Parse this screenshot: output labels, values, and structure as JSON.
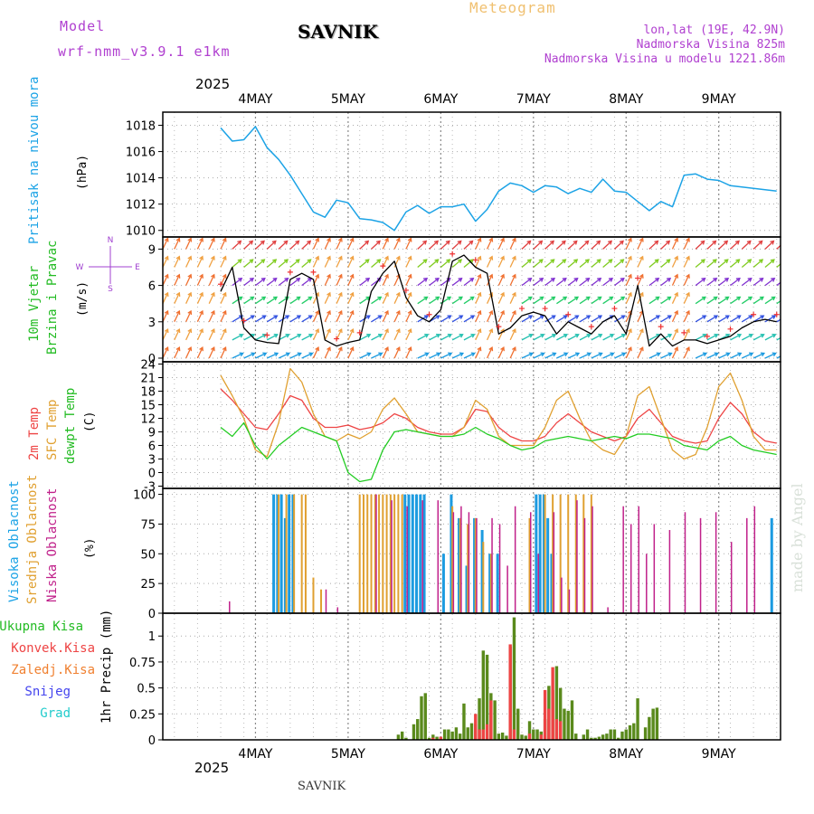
{
  "header": {
    "model_label": "Model",
    "model_name": "wrf-nmm_v3.9.1 e1km",
    "station": "SAVNIK",
    "meteogram": "Meteogram",
    "lonlat": "lon,lat (19E, 42.9N)",
    "elevation": "Nadmorska Visina 825m",
    "model_elevation": "Nadmorska Visina u modelu 1221.86m",
    "year_top": "2025",
    "year_bottom": "2025",
    "footer_station": "SAVNIK",
    "watermark": "made by Angel"
  },
  "days": [
    "4MAY",
    "5MAY",
    "6MAY",
    "7MAY",
    "8MAY",
    "9MAY"
  ],
  "colors": {
    "pressure": "#1ca3e6",
    "temp2m": "#ee4444",
    "sfc": "#e0a030",
    "dewpt": "#22cc22",
    "high_cloud": "#1c9be0",
    "mid_cloud": "#e0a030",
    "low_cloud": "#c0208a",
    "total_precip": "#5a8a1c",
    "conv_precip": "#ee4444"
  },
  "panel_labels": {
    "pressure": [
      "Pritisak na nivou mora",
      "(hPa)"
    ],
    "wind": [
      "10m Vjetar",
      "Brzina i Pravac",
      "(m/s)"
    ],
    "temp": [
      "2m Temp",
      "SFC Temp",
      "dewpt Temp",
      "(C)"
    ],
    "cloud": [
      "Visoka Oblacnost",
      "Srednja Oblacnost",
      "Niska Oblacnost",
      "(%)"
    ],
    "precip": [
      "1hr Precip (mm)"
    ],
    "compass": [
      "N",
      "S",
      "W",
      "E"
    ]
  },
  "precip_legend": [
    {
      "label": "Ukupna Kisa",
      "color": "#22bb22"
    },
    {
      "label": "Konvek.Kisa",
      "color": "#ee4444"
    },
    {
      "label": "Zaledj.Kisa",
      "color": "#f08030"
    },
    {
      "label": "Snijeg",
      "color": "#4444ee"
    },
    {
      "label": "Grad",
      "color": "#22cccc"
    }
  ],
  "chart_data": [
    {
      "type": "line",
      "name": "pressure",
      "ylabel": "(hPa)",
      "ylim": [
        1009.5,
        1019
      ],
      "yticks": [
        "1010",
        "1012",
        "1014",
        "1016",
        "1018"
      ],
      "x_hours": [
        0,
        3,
        6,
        9,
        12,
        15,
        18,
        21,
        24,
        27,
        30,
        33,
        36,
        39,
        42,
        45,
        48,
        51,
        54,
        57,
        60,
        63,
        66,
        69,
        72,
        75,
        78,
        81,
        84,
        87,
        90,
        93,
        96,
        99,
        102,
        105,
        108,
        111,
        114,
        117,
        120,
        123,
        126,
        129,
        132,
        135,
        138,
        141,
        144
      ],
      "values": [
        1017.8,
        1016.8,
        1016.9,
        1017.9,
        1016.3,
        1015.4,
        1014.2,
        1012.8,
        1011.4,
        1011.0,
        1012.3,
        1012.1,
        1010.9,
        1010.8,
        1010.6,
        1010.0,
        1011.4,
        1011.9,
        1011.3,
        1011.8,
        1011.8,
        1012.0,
        1010.7,
        1011.6,
        1013.0,
        1013.6,
        1013.4,
        1012.9,
        1013.4,
        1013.3,
        1012.8,
        1013.2,
        1012.9,
        1013.9,
        1013.0,
        1012.9,
        1012.2,
        1011.5,
        1012.2,
        1011.8,
        1014.2,
        1014.3,
        1013.9,
        1013.8,
        1013.4,
        1013.3,
        1013.2,
        1013.1,
        1013.0
      ]
    },
    {
      "type": "line",
      "name": "wind",
      "ylabel": "(m/s)",
      "ylim": [
        -0.3,
        10
      ],
      "yticks": [
        "0",
        "3",
        "6",
        "9"
      ],
      "x_hours": [
        0,
        3,
        6,
        9,
        12,
        15,
        18,
        21,
        24,
        27,
        30,
        33,
        36,
        39,
        42,
        45,
        48,
        51,
        54,
        57,
        60,
        63,
        66,
        69,
        72,
        75,
        78,
        81,
        84,
        87,
        90,
        93,
        96,
        99,
        102,
        105,
        108,
        111,
        114,
        117,
        120,
        123,
        126,
        129,
        132,
        135,
        138,
        141,
        144
      ],
      "values": [
        5.5,
        7.5,
        2.5,
        1.5,
        1.3,
        1.2,
        6.5,
        7.0,
        6.5,
        1.5,
        1.0,
        1.3,
        1.5,
        5.5,
        7.0,
        8.0,
        5.0,
        3.5,
        3.0,
        4.0,
        8.0,
        8.5,
        7.5,
        7.0,
        2.0,
        2.5,
        3.5,
        3.8,
        3.5,
        2.0,
        3.0,
        2.5,
        2.0,
        3.0,
        3.5,
        2.0,
        6.0,
        1.0,
        2.0,
        1.0,
        1.5,
        1.5,
        1.2,
        1.5,
        1.8,
        2.5,
        3.0,
        3.2,
        3.0
      ]
    },
    {
      "type": "line",
      "name": "temperature",
      "ylabel": "(C)",
      "ylim": [
        -3.5,
        24.5
      ],
      "yticks": [
        "-3",
        "0",
        "3",
        "6",
        "9",
        "12",
        "15",
        "18",
        "21",
        "24"
      ],
      "x_hours": [
        0,
        3,
        6,
        9,
        12,
        15,
        18,
        21,
        24,
        27,
        30,
        33,
        36,
        39,
        42,
        45,
        48,
        51,
        54,
        57,
        60,
        63,
        66,
        69,
        72,
        75,
        78,
        81,
        84,
        87,
        90,
        93,
        96,
        99,
        102,
        105,
        108,
        111,
        114,
        117,
        120,
        123,
        126,
        129,
        132,
        135,
        138,
        141,
        144
      ],
      "series": [
        {
          "name": "2m Temp",
          "values": [
            18.5,
            16,
            13,
            10,
            9.5,
            13,
            17,
            16,
            12,
            10,
            10,
            10.5,
            9.5,
            10,
            11,
            13,
            12,
            10,
            9,
            8.5,
            8.5,
            10,
            14,
            13.5,
            10,
            8,
            7,
            7,
            8,
            11,
            13,
            11,
            9,
            8,
            7,
            8,
            12,
            14,
            11,
            8,
            7,
            6.5,
            7,
            12,
            15.5,
            13,
            9,
            7,
            6.5
          ]
        },
        {
          "name": "SFC Temp",
          "values": [
            21.5,
            17,
            12,
            5,
            3.5,
            11,
            23,
            20,
            13,
            8,
            7,
            8.5,
            7.5,
            9,
            14,
            16.5,
            13,
            9,
            8.5,
            8,
            8,
            10,
            16,
            14,
            8,
            6,
            6,
            6,
            10,
            16,
            18,
            12,
            7,
            5,
            4,
            8,
            17,
            19,
            12,
            5,
            3,
            4,
            10,
            19,
            22,
            16,
            8,
            5,
            5
          ]
        },
        {
          "name": "dewpt Temp",
          "values": [
            10,
            8,
            11,
            6,
            3,
            6,
            8,
            10,
            9,
            8,
            7,
            0,
            -2,
            -1.5,
            5,
            9,
            9.5,
            9,
            8.5,
            8,
            8,
            8.5,
            10,
            8.5,
            7.5,
            6,
            5,
            5.5,
            7,
            7.5,
            8,
            7.5,
            7,
            7.5,
            8,
            7.5,
            8.5,
            8.5,
            8,
            7.5,
            6,
            5.5,
            5,
            7,
            8,
            6,
            5,
            4.5,
            4
          ]
        }
      ]
    },
    {
      "type": "bar",
      "name": "cloud_cover",
      "ylabel": "(%)",
      "ylim": [
        0,
        105
      ],
      "yticks": [
        "0",
        "25",
        "50",
        "75",
        "100"
      ],
      "series": [
        {
          "name": "Visoka Oblacnost",
          "x_hours": [
            14,
            15,
            16,
            17,
            18,
            19,
            48,
            49,
            50,
            51,
            52,
            53,
            58,
            60,
            62,
            64,
            66,
            68,
            70,
            72,
            82,
            83,
            84,
            85,
            86,
            143
          ],
          "values": [
            100,
            100,
            100,
            80,
            100,
            100,
            100,
            100,
            100,
            100,
            100,
            100,
            50,
            100,
            80,
            40,
            80,
            70,
            50,
            50,
            100,
            100,
            100,
            80,
            50,
            80
          ]
        },
        {
          "name": "Srednja Oblacnost",
          "x_hours": [
            15,
            17,
            19,
            21,
            22,
            24,
            26,
            36,
            37,
            38,
            39,
            40,
            41,
            42,
            43,
            44,
            45,
            46,
            47,
            60,
            62,
            64,
            66,
            68,
            70,
            80,
            84,
            86,
            88,
            90,
            92,
            94,
            96
          ],
          "values": [
            100,
            100,
            100,
            100,
            100,
            30,
            20,
            100,
            100,
            100,
            100,
            100,
            100,
            100,
            100,
            100,
            100,
            100,
            100,
            90,
            80,
            75,
            80,
            60,
            50,
            80,
            100,
            100,
            100,
            100,
            100,
            100,
            100
          ]
        },
        {
          "name": "Niska Oblacnost",
          "x_hours": [
            2,
            27,
            30,
            40,
            44,
            48,
            52,
            56,
            60,
            62,
            64,
            66,
            70,
            72,
            74,
            76,
            80,
            82,
            86,
            88,
            90,
            92,
            94,
            96,
            100,
            104,
            106,
            108,
            110,
            112,
            116,
            120,
            124,
            128,
            132,
            136,
            138
          ],
          "values": [
            10,
            20,
            5,
            100,
            95,
            90,
            95,
            95,
            85,
            90,
            85,
            80,
            80,
            75,
            40,
            90,
            85,
            50,
            85,
            30,
            20,
            95,
            80,
            90,
            5,
            90,
            75,
            90,
            50,
            75,
            70,
            85,
            80,
            85,
            60,
            80,
            90
          ]
        }
      ]
    },
    {
      "type": "bar",
      "name": "precipitation",
      "ylabel": "1hr Precip (mm)",
      "ylim": [
        0,
        1.22
      ],
      "yticks": [
        "0",
        "0.25",
        "0.5",
        "0.75",
        "1"
      ],
      "series": [
        {
          "name": "Ukupna Kisa",
          "x_hours": [
            46,
            47,
            48,
            50,
            51,
            52,
            53,
            54,
            55,
            56,
            57,
            58,
            59,
            60,
            61,
            62,
            63,
            64,
            65,
            66,
            67,
            68,
            69,
            70,
            71,
            72,
            73,
            74,
            75,
            76,
            77,
            78,
            79,
            80,
            81,
            82,
            83,
            84,
            85,
            86,
            87,
            88,
            89,
            90,
            91,
            92,
            94,
            95,
            96,
            97,
            98,
            99,
            100,
            101,
            102,
            103,
            104,
            105,
            106,
            107,
            108,
            110,
            111,
            112,
            113
          ],
          "values": [
            0.05,
            0.08,
            0.02,
            0.15,
            0.2,
            0.42,
            0.45,
            0.02,
            0.05,
            0.03,
            0.02,
            0.1,
            0.1,
            0.08,
            0.12,
            0.06,
            0.35,
            0.12,
            0.16,
            0.15,
            0.4,
            0.86,
            0.82,
            0.45,
            0.38,
            0.06,
            0.07,
            0.04,
            0.9,
            1.18,
            0.3,
            0.05,
            0.04,
            0.18,
            0.1,
            0.1,
            0.08,
            0.2,
            0.52,
            0.48,
            0.71,
            0.5,
            0.3,
            0.28,
            0.38,
            0.06,
            0.05,
            0.1,
            0.02,
            0.02,
            0.03,
            0.05,
            0.06,
            0.1,
            0.1,
            0.02,
            0.08,
            0.1,
            0.14,
            0.16,
            0.4,
            0.12,
            0.22,
            0.3,
            0.31
          ]
        },
        {
          "name": "Konvek.Kisa",
          "x_hours": [
            55,
            57,
            66,
            67,
            68,
            69,
            70,
            75,
            76,
            80,
            83,
            84,
            85,
            86,
            87,
            88
          ],
          "values": [
            0.02,
            0.03,
            0.25,
            0.1,
            0.1,
            0.15,
            0.38,
            0.92,
            0.1,
            0.06,
            0.05,
            0.48,
            0.3,
            0.7,
            0.2,
            0.18
          ]
        }
      ]
    }
  ]
}
